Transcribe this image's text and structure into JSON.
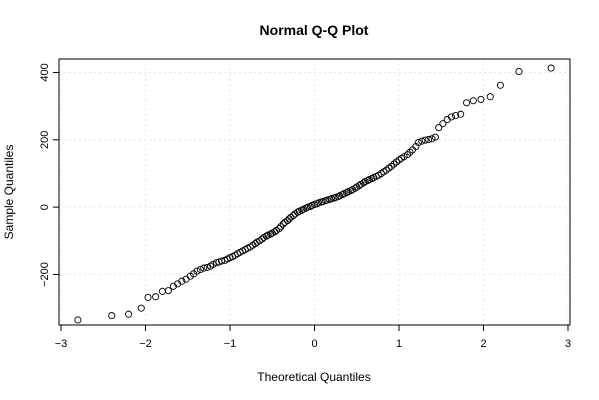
{
  "chart_data": {
    "type": "scatter",
    "title": "Normal Q-Q Plot",
    "xlabel": "Theoretical Quantiles",
    "ylabel": "Sample Quantiles",
    "xlim": [
      -3,
      3
    ],
    "ylim": [
      -350,
      440
    ],
    "x_ticks": [
      -3,
      -2,
      -1,
      0,
      1,
      2,
      3
    ],
    "y_ticks": [
      -200,
      0,
      200,
      400
    ],
    "x_tick_labels": [
      "−3",
      "−2",
      "−1",
      "0",
      "1",
      "2",
      "3"
    ],
    "y_tick_labels": [
      "−200",
      "0",
      "200",
      "400"
    ],
    "grid": true,
    "marker": "open-circle",
    "series": [
      {
        "points": [
          [
            -2.8,
            -335
          ],
          [
            -2.4,
            -322
          ],
          [
            -2.2,
            -318
          ],
          [
            -2.05,
            -300
          ],
          [
            -1.97,
            -268
          ],
          [
            -1.88,
            -266
          ],
          [
            -1.8,
            -250
          ],
          [
            -1.73,
            -248
          ],
          [
            -1.67,
            -235
          ],
          [
            -1.62,
            -228
          ],
          [
            -1.57,
            -220
          ],
          [
            -1.52,
            -214
          ],
          [
            -1.47,
            -205
          ],
          [
            -1.43,
            -198
          ],
          [
            -1.39,
            -190
          ],
          [
            -1.35,
            -185
          ],
          [
            -1.31,
            -181
          ],
          [
            -1.27,
            -179
          ],
          [
            -1.23,
            -175
          ],
          [
            -1.2,
            -170
          ],
          [
            -1.16,
            -165
          ],
          [
            -1.13,
            -163
          ],
          [
            -1.1,
            -160
          ],
          [
            -1.06,
            -158
          ],
          [
            -1.03,
            -154
          ],
          [
            -1.0,
            -150
          ],
          [
            -0.97,
            -147
          ],
          [
            -0.94,
            -143
          ],
          [
            -0.91,
            -138
          ],
          [
            -0.88,
            -134
          ],
          [
            -0.85,
            -130
          ],
          [
            -0.82,
            -126
          ],
          [
            -0.79,
            -122
          ],
          [
            -0.76,
            -118
          ],
          [
            -0.73,
            -113
          ],
          [
            -0.7,
            -108
          ],
          [
            -0.68,
            -104
          ],
          [
            -0.65,
            -100
          ],
          [
            -0.62,
            -95
          ],
          [
            -0.6,
            -90
          ],
          [
            -0.57,
            -86
          ],
          [
            -0.55,
            -83
          ],
          [
            -0.52,
            -80
          ],
          [
            -0.5,
            -77
          ],
          [
            -0.47,
            -73
          ],
          [
            -0.45,
            -69
          ],
          [
            -0.42,
            -64
          ],
          [
            -0.4,
            -58
          ],
          [
            -0.37,
            -50
          ],
          [
            -0.35,
            -45
          ],
          [
            -0.32,
            -40
          ],
          [
            -0.3,
            -35
          ],
          [
            -0.28,
            -30
          ],
          [
            -0.25,
            -25
          ],
          [
            -0.23,
            -20
          ],
          [
            -0.2,
            -15
          ],
          [
            -0.18,
            -12
          ],
          [
            -0.15,
            -9
          ],
          [
            -0.13,
            -6
          ],
          [
            -0.1,
            -3
          ],
          [
            -0.08,
            0
          ],
          [
            -0.05,
            2
          ],
          [
            -0.03,
            5
          ],
          [
            0.0,
            8
          ],
          [
            0.03,
            10
          ],
          [
            0.05,
            13
          ],
          [
            0.08,
            15
          ],
          [
            0.1,
            17
          ],
          [
            0.13,
            19
          ],
          [
            0.15,
            21
          ],
          [
            0.18,
            23
          ],
          [
            0.2,
            25
          ],
          [
            0.23,
            27
          ],
          [
            0.25,
            29
          ],
          [
            0.28,
            31
          ],
          [
            0.3,
            34
          ],
          [
            0.33,
            37
          ],
          [
            0.35,
            40
          ],
          [
            0.38,
            43
          ],
          [
            0.4,
            46
          ],
          [
            0.43,
            49
          ],
          [
            0.45,
            52
          ],
          [
            0.48,
            56
          ],
          [
            0.5,
            60
          ],
          [
            0.53,
            64
          ],
          [
            0.55,
            68
          ],
          [
            0.58,
            72
          ],
          [
            0.6,
            76
          ],
          [
            0.63,
            79
          ],
          [
            0.65,
            82
          ],
          [
            0.68,
            85
          ],
          [
            0.7,
            88
          ],
          [
            0.73,
            91
          ],
          [
            0.76,
            95
          ],
          [
            0.79,
            100
          ],
          [
            0.82,
            105
          ],
          [
            0.85,
            110
          ],
          [
            0.88,
            116
          ],
          [
            0.91,
            121
          ],
          [
            0.94,
            128
          ],
          [
            0.97,
            134
          ],
          [
            1.0,
            140
          ],
          [
            1.03,
            145
          ],
          [
            1.06,
            150
          ],
          [
            1.1,
            156
          ],
          [
            1.13,
            163
          ],
          [
            1.16,
            170
          ],
          [
            1.2,
            180
          ],
          [
            1.23,
            192
          ],
          [
            1.27,
            196
          ],
          [
            1.31,
            199
          ],
          [
            1.35,
            201
          ],
          [
            1.39,
            203
          ],
          [
            1.43,
            208
          ],
          [
            1.47,
            236
          ],
          [
            1.52,
            248
          ],
          [
            1.57,
            260
          ],
          [
            1.62,
            268
          ],
          [
            1.67,
            272
          ],
          [
            1.73,
            276
          ],
          [
            1.8,
            310
          ],
          [
            1.88,
            316
          ],
          [
            1.97,
            320
          ],
          [
            2.08,
            328
          ],
          [
            2.2,
            362
          ],
          [
            2.42,
            403
          ],
          [
            2.8,
            413
          ]
        ]
      }
    ]
  }
}
